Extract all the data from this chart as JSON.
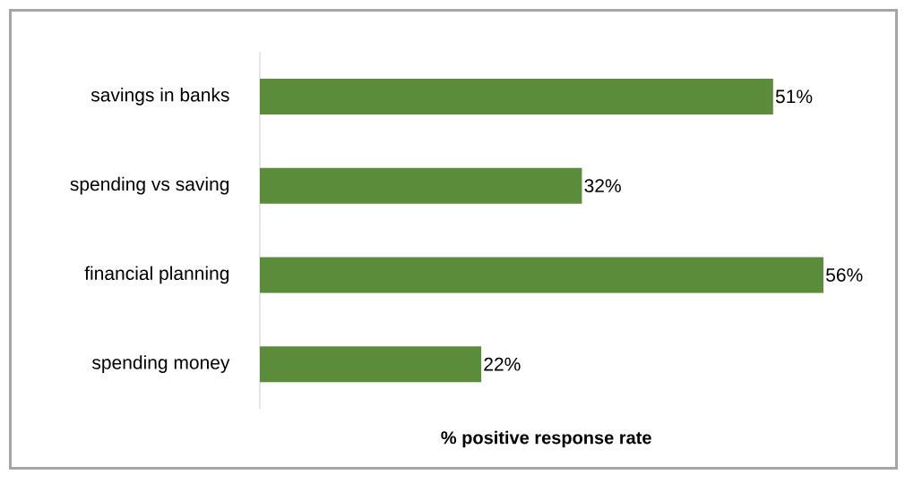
{
  "chart_data": {
    "type": "bar",
    "orientation": "horizontal",
    "xlabel": "% positive response rate",
    "categories": [
      "savings in banks",
      "spending vs saving",
      "financial planning",
      "spending money"
    ],
    "values": [
      51,
      32,
      56,
      22
    ],
    "value_labels": [
      "51%",
      "32%",
      "56%",
      "22%"
    ],
    "color": "#5b8c3a"
  }
}
